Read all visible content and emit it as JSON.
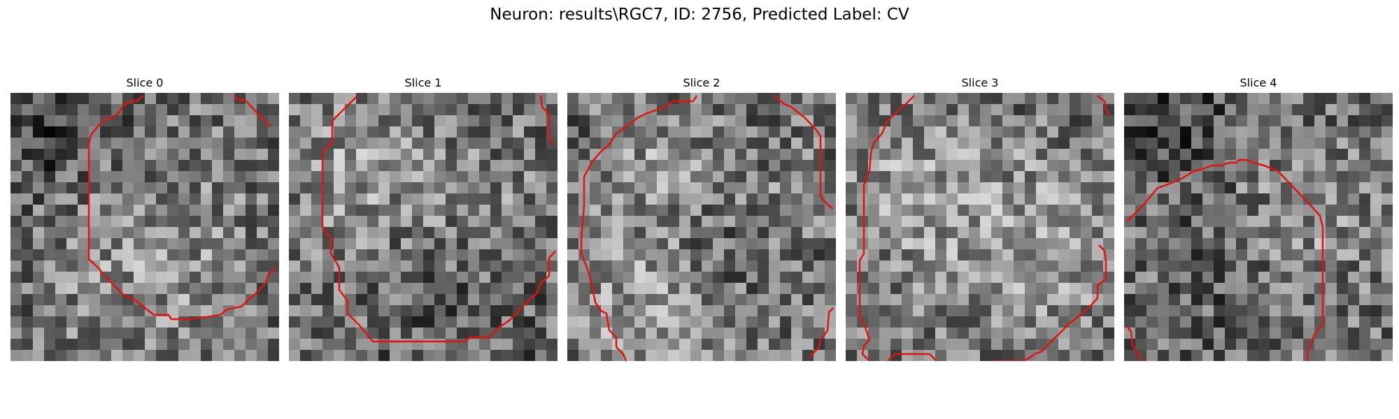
{
  "figure": {
    "title": "Neuron: results\\RGC7, ID: 2756, Predicted Label: CV"
  },
  "panels": [
    {
      "title": "Slice 0",
      "image": "grayscale-pixel-patch",
      "overlay_color": "#e3120b"
    },
    {
      "title": "Slice 1",
      "image": "grayscale-pixel-patch",
      "overlay_color": "#e3120b"
    },
    {
      "title": "Slice 2",
      "image": "grayscale-pixel-patch",
      "overlay_color": "#e3120b"
    },
    {
      "title": "Slice 3",
      "image": "grayscale-pixel-patch",
      "overlay_color": "#e3120b"
    },
    {
      "title": "Slice 4",
      "image": "grayscale-pixel-patch",
      "overlay_color": "#e3120b"
    }
  ]
}
